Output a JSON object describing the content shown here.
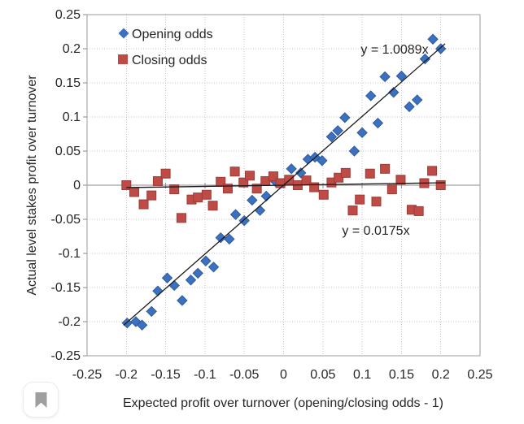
{
  "chart_data": {
    "type": "scatter",
    "title": "",
    "xlabel": "Expected profit over turnover (opening/closing odds - 1)",
    "ylabel": "Actual level stakes profit over turnover",
    "xlim": [
      -0.25,
      0.25
    ],
    "ylim": [
      -0.25,
      0.25
    ],
    "grid": true,
    "grid_style": "dotted",
    "legend_position": "inside-top-left",
    "x_ticks": [
      -0.25,
      -0.2,
      -0.15,
      -0.1,
      -0.05,
      0,
      0.05,
      0.1,
      0.15,
      0.2,
      0.25
    ],
    "x_tick_labels": [
      "-0.25",
      "-0.2",
      "-0.15",
      "-0.1",
      "-0.05",
      "0",
      "0.05",
      "0.1",
      "0.15",
      "0.2",
      "0.25"
    ],
    "y_ticks": [
      -0.25,
      -0.2,
      -0.15,
      -0.1,
      -0.05,
      0,
      0.05,
      0.1,
      0.15,
      0.2,
      0.25
    ],
    "y_tick_labels": [
      "-0.25",
      "-0.2",
      "-0.15",
      "-0.1",
      "-0.05",
      "0",
      "0.05",
      "0.1",
      "0.15",
      "0.2",
      "0.25"
    ],
    "series": [
      {
        "name": "Opening odds",
        "marker": "diamond",
        "color": "#3c70c0",
        "border": "#2f5b9e",
        "points": [
          [
            -0.199,
            -0.202
          ],
          [
            -0.188,
            -0.2
          ],
          [
            -0.18,
            -0.205
          ],
          [
            -0.168,
            -0.185
          ],
          [
            -0.16,
            -0.155
          ],
          [
            -0.148,
            -0.136
          ],
          [
            -0.139,
            -0.147
          ],
          [
            -0.129,
            -0.169
          ],
          [
            -0.118,
            -0.139
          ],
          [
            -0.109,
            -0.129
          ],
          [
            -0.099,
            -0.111
          ],
          [
            -0.089,
            -0.12
          ],
          [
            -0.08,
            -0.077
          ],
          [
            -0.069,
            -0.079
          ],
          [
            -0.061,
            -0.043
          ],
          [
            -0.05,
            -0.052
          ],
          [
            -0.04,
            -0.022
          ],
          [
            -0.03,
            -0.037
          ],
          [
            -0.022,
            -0.016
          ],
          [
            -0.01,
            0.005
          ],
          [
            0.01,
            0.024
          ],
          [
            0.022,
            0.018
          ],
          [
            0.031,
            0.038
          ],
          [
            0.04,
            0.041
          ],
          [
            0.049,
            0.036
          ],
          [
            0.061,
            0.071
          ],
          [
            0.069,
            0.08
          ],
          [
            0.078,
            0.099
          ],
          [
            0.09,
            0.05
          ],
          [
            0.1,
            0.077
          ],
          [
            0.111,
            0.131
          ],
          [
            0.12,
            0.091
          ],
          [
            0.129,
            0.159
          ],
          [
            0.14,
            0.136
          ],
          [
            0.15,
            0.16
          ],
          [
            0.16,
            0.115
          ],
          [
            0.17,
            0.125
          ],
          [
            0.18,
            0.185
          ],
          [
            0.19,
            0.214
          ],
          [
            0.2,
            0.2
          ]
        ]
      },
      {
        "name": "Closing odds",
        "marker": "square",
        "color": "#be4b45",
        "border": "#9e3b38",
        "points": [
          [
            -0.2,
            0.0
          ],
          [
            -0.19,
            -0.01
          ],
          [
            -0.178,
            -0.028
          ],
          [
            -0.168,
            -0.015
          ],
          [
            -0.16,
            0.006
          ],
          [
            -0.15,
            0.017
          ],
          [
            -0.139,
            -0.006
          ],
          [
            -0.13,
            -0.048
          ],
          [
            -0.117,
            -0.021
          ],
          [
            -0.109,
            -0.018
          ],
          [
            -0.098,
            -0.014
          ],
          [
            -0.09,
            -0.03
          ],
          [
            -0.08,
            0.005
          ],
          [
            -0.071,
            -0.005
          ],
          [
            -0.062,
            0.02
          ],
          [
            -0.051,
            0.004
          ],
          [
            -0.043,
            0.014
          ],
          [
            -0.034,
            -0.005
          ],
          [
            -0.023,
            0.006
          ],
          [
            -0.013,
            0.013
          ],
          [
            -0.004,
            0.003
          ],
          [
            0.007,
            0.008
          ],
          [
            0.018,
            0.0
          ],
          [
            0.029,
            0.007
          ],
          [
            0.039,
            -0.003
          ],
          [
            0.051,
            -0.014
          ],
          [
            0.061,
            0.004
          ],
          [
            0.07,
            0.011
          ],
          [
            0.079,
            0.018
          ],
          [
            0.088,
            -0.037
          ],
          [
            0.097,
            -0.021
          ],
          [
            0.11,
            0.017
          ],
          [
            0.118,
            -0.024
          ],
          [
            0.129,
            0.024
          ],
          [
            0.138,
            -0.006
          ],
          [
            0.149,
            0.008
          ],
          [
            0.163,
            -0.036
          ],
          [
            0.172,
            -0.038
          ],
          [
            0.179,
            0.003
          ],
          [
            0.189,
            0.021
          ],
          [
            0.2,
            0.0
          ]
        ]
      }
    ],
    "trendlines": [
      {
        "series": "Opening odds",
        "equation": "y = 1.0089x",
        "slope": 1.0089,
        "x_range": [
          -0.2035,
          0.2055
        ],
        "color": "#1a1a1a"
      },
      {
        "series": "Closing odds",
        "equation": "y = 0.0175x",
        "slope": 0.0175,
        "x_range": [
          -0.2,
          0.2055
        ],
        "color": "#1a1a1a"
      }
    ]
  },
  "bookmark_button": {
    "icon": "bookmark-icon"
  }
}
